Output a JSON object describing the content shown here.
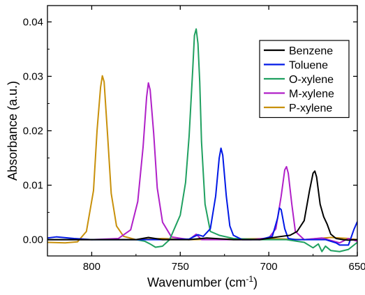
{
  "chart_data": {
    "type": "line",
    "xlabel": "Wavenumber (cm",
    "xlabel_sup": "-1",
    "xlabel_end": ")",
    "ylabel": "Absorbance (a.u.)",
    "xlim": [
      825,
      650
    ],
    "ylim": [
      -0.003,
      0.043
    ],
    "x_ticks": [
      800,
      750,
      700,
      650
    ],
    "x_tick_labels": [
      "800",
      "750",
      "700",
      "650"
    ],
    "y_ticks": [
      0.0,
      0.01,
      0.02,
      0.03,
      0.04
    ],
    "y_tick_labels": [
      "0.00",
      "0.01",
      "0.02",
      "0.03",
      "0.04"
    ],
    "grid": false,
    "legend_position": "top-right",
    "series": [
      {
        "name": "Benzene",
        "color": "#000000",
        "x": [
          825,
          800,
          775,
          768,
          760,
          745,
          735,
          720,
          705,
          695,
          688,
          684,
          680,
          677,
          675,
          674,
          673,
          671,
          669,
          667,
          665,
          662,
          658,
          655,
          650
        ],
        "y": [
          0.0,
          0.0,
          0.0,
          0.0004,
          0.0,
          0.0,
          0.0003,
          0.0,
          0.0,
          0.0005,
          0.0008,
          0.0015,
          0.0035,
          0.009,
          0.0122,
          0.0126,
          0.0115,
          0.0065,
          0.0042,
          0.0028,
          0.001,
          0.0002,
          0.0,
          -0.0001,
          0.0
        ]
      },
      {
        "name": "Toluene",
        "color": "#0018e6",
        "x": [
          825,
          820,
          810,
          800,
          790,
          775,
          760,
          745,
          740,
          737,
          733,
          730,
          728,
          727,
          726,
          724,
          722,
          720,
          715,
          705,
          698,
          695,
          694,
          693,
          691,
          689,
          685,
          675,
          668,
          662,
          660,
          655,
          652,
          650
        ],
        "y": [
          0.0003,
          0.0005,
          0.0002,
          0.0,
          0.0,
          0.0,
          0.0,
          0.0001,
          0.0009,
          0.0006,
          0.002,
          0.008,
          0.015,
          0.0168,
          0.0155,
          0.008,
          0.0025,
          0.0008,
          0.0,
          0.0,
          0.0006,
          0.004,
          0.0058,
          0.0055,
          0.002,
          0.0002,
          0.0,
          0.0,
          0.0,
          -0.0006,
          -0.001,
          -0.001,
          0.0018,
          0.0033
        ]
      },
      {
        "name": "O-xylene",
        "color": "#1fa060",
        "x": [
          825,
          800,
          775,
          770,
          767,
          764,
          760,
          756,
          750,
          747,
          745,
          743,
          742,
          741,
          740,
          739,
          738,
          736,
          733,
          728,
          720,
          705,
          690,
          680,
          675,
          672,
          670,
          668,
          665,
          660,
          655,
          650
        ],
        "y": [
          0.0,
          0.0,
          0.0,
          -0.0003,
          -0.0008,
          -0.0014,
          -0.0012,
          0.0,
          0.0045,
          0.0105,
          0.019,
          0.031,
          0.0375,
          0.0387,
          0.036,
          0.029,
          0.018,
          0.0065,
          0.0015,
          0.0008,
          0.0002,
          0.0,
          0.0,
          -0.0005,
          -0.0015,
          -0.0008,
          -0.0022,
          -0.0012,
          -0.002,
          -0.0022,
          -0.0018,
          -0.0005
        ]
      },
      {
        "name": "M-xylene",
        "color": "#b020c8",
        "x": [
          825,
          800,
          785,
          778,
          774,
          771,
          769,
          768,
          767,
          765,
          763,
          760,
          755,
          745,
          741,
          738,
          730,
          710,
          700,
          696,
          693,
          691,
          690,
          689,
          687,
          685,
          680,
          670,
          660,
          655,
          650
        ],
        "y": [
          0.0,
          0.0,
          0.0002,
          0.0018,
          0.007,
          0.017,
          0.0262,
          0.0288,
          0.0275,
          0.0195,
          0.0095,
          0.0032,
          0.0005,
          0.0,
          0.001,
          0.0,
          0.0,
          0.0,
          0.0003,
          0.002,
          0.008,
          0.0128,
          0.0134,
          0.0122,
          0.0065,
          0.0015,
          0.0,
          0.0003,
          -0.0006,
          0.0002,
          -0.0003
        ]
      },
      {
        "name": "P-xylene",
        "color": "#c8900a",
        "x": [
          825,
          815,
          808,
          803,
          799,
          797,
          795,
          794,
          793,
          791,
          789,
          786,
          782,
          775,
          760,
          745,
          720,
          700,
          680,
          665,
          655,
          650
        ],
        "y": [
          -0.0005,
          -0.0006,
          -0.0004,
          0.0015,
          0.009,
          0.02,
          0.028,
          0.0301,
          0.029,
          0.019,
          0.0085,
          0.0025,
          0.0006,
          0.0,
          0.0002,
          0.0,
          0.0001,
          0.0002,
          0.0,
          0.0004,
          0.0002,
          0.0
        ]
      }
    ]
  }
}
